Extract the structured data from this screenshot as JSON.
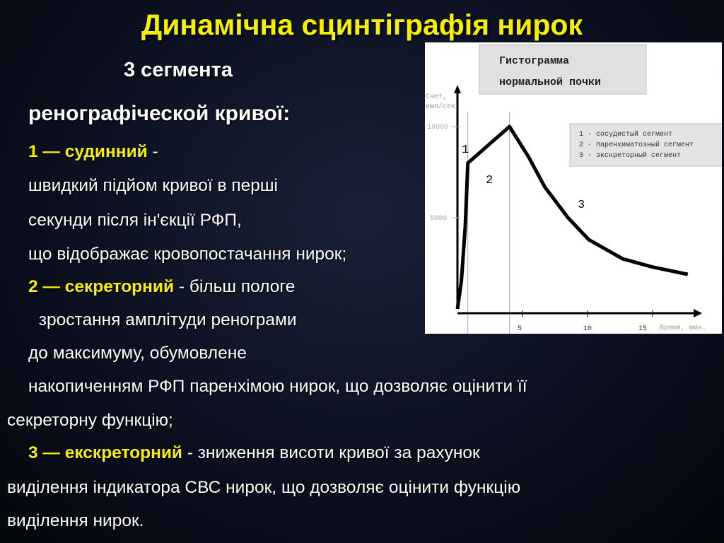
{
  "title": "Динамічна сцинтіграфія нирок",
  "subtitle": "3 сегмента",
  "heading": "ренографіческой кривої:",
  "segments": [
    {
      "label": "1 — судинний",
      "suffix": " -",
      "lines": [
        "швидкий підйом кривої в перші",
        "секунди після ін'єкції РФП,",
        "що відображає кровопостачання нирок;"
      ]
    },
    {
      "label": "2 — секреторний",
      "suffix": " - більш пологе",
      "lines": [
        " зростання амплітуди ренограми",
        "до максимуму, обумовлене",
        "накопиченням РФП паренхімою нирок, що дозволяє оцінити її",
        "секреторну функцію;"
      ]
    },
    {
      "label": "3 — екскреторний",
      "suffix": " - зниження висоти кривої за рахунок",
      "lines": [
        "виділення індикатора СВС нирок, що дозволяє оцінити функцію",
        "виділення нирок."
      ]
    }
  ],
  "colors": {
    "title": "#f5f000",
    "highlight": "#f5f000",
    "text": "#ffffff",
    "background": "#0c1020"
  },
  "chart_data": {
    "type": "line",
    "title": "Гистограмма нормальной почки",
    "title_lines": [
      "Гистограмма",
      "нормальной почки"
    ],
    "ylabel_lines": [
      "Счет,",
      "имп/сек."
    ],
    "xlabel": "Время, мин.",
    "xticks": [
      "5",
      "10",
      "15"
    ],
    "yticks": [
      "5000",
      "10000"
    ],
    "xlim": [
      0,
      19
    ],
    "ylim": [
      0,
      10500
    ],
    "series": [
      {
        "x": [
          0,
          0.3,
          0.6,
          0.8,
          4.0,
          5.5,
          6.7,
          8.5,
          10.1,
          12.7,
          15,
          17.7
        ],
        "y": [
          0,
          1500,
          4500,
          8000,
          10000,
          8300,
          6700,
          5000,
          3800,
          2750,
          2300,
          1900
        ]
      }
    ],
    "segment_markers": [
      0.8,
      4.0
    ],
    "region_labels": [
      "1",
      "2",
      "3"
    ],
    "legend": [
      "1 - сосудистый сегмент",
      "2 - паренхиматозный сегмент",
      "3 - экскреторный сегмент"
    ],
    "legend_position": "top-right"
  }
}
